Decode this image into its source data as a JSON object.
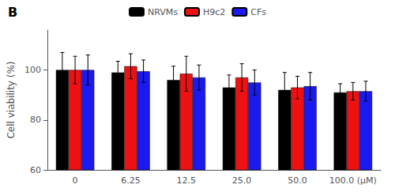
{
  "chart_data": {
    "type": "bar",
    "title": "B",
    "ylabel": "Cell viability (%)",
    "categories": [
      "0",
      "6.25",
      "12.5",
      "25.0",
      "50.0",
      "100.0 (µM)"
    ],
    "series": [
      {
        "name": "NRVMs",
        "color": "#000000",
        "values": [
          100.0,
          99.0,
          96.0,
          93.0,
          92.0,
          91.0
        ],
        "errors": [
          7.0,
          4.5,
          5.5,
          5.0,
          7.0,
          3.5
        ]
      },
      {
        "name": "H9c2",
        "color": "#ee1111",
        "values": [
          100.0,
          101.5,
          98.5,
          97.0,
          93.0,
          91.5
        ],
        "errors": [
          5.5,
          5.0,
          7.0,
          5.5,
          4.5,
          3.5
        ]
      },
      {
        "name": "CFs",
        "color": "#1a1aee",
        "values": [
          100.0,
          99.5,
          97.0,
          95.0,
          93.5,
          91.5
        ],
        "errors": [
          6.0,
          4.5,
          5.0,
          5.0,
          5.5,
          4.0
        ]
      }
    ],
    "ylim": [
      60,
      116
    ],
    "yticks": [
      60,
      80,
      100
    ],
    "grid": false,
    "legend": "top"
  }
}
